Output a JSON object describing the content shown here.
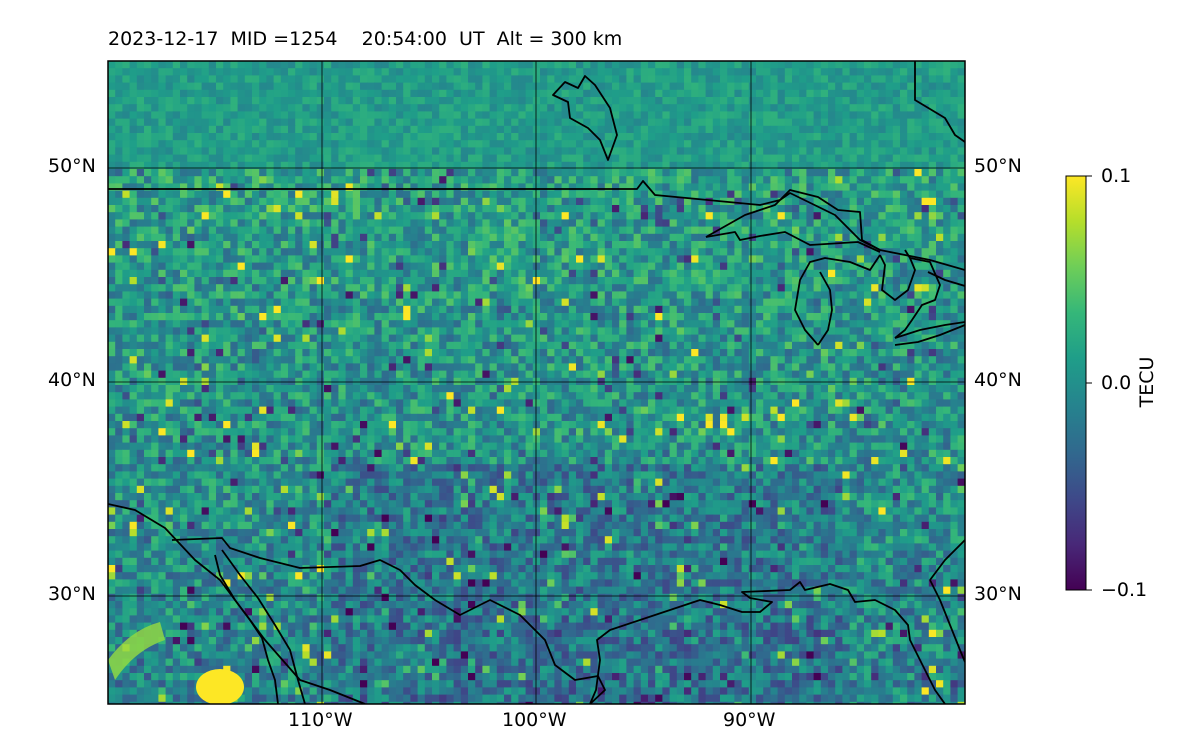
{
  "header": {
    "date": "2023-12-17",
    "mid": "MID =1254",
    "time": "20:54:00  UT",
    "alt": "Alt = 300 km"
  },
  "map": {
    "lat_labels": [
      "50°N",
      "40°N",
      "30°N"
    ],
    "lon_labels": [
      "110°W",
      "100°W",
      "90°W"
    ],
    "lat_range": [
      25,
      55
    ],
    "lon_range": [
      -120,
      -80
    ]
  },
  "colorbar": {
    "label": "TECU",
    "ticks": [
      "0.1",
      "0.0",
      "−0.1"
    ],
    "range": [
      -0.1,
      0.1
    ],
    "colormap": "viridis",
    "stops": [
      "#440154",
      "#482878",
      "#3e4989",
      "#31688e",
      "#26828e",
      "#1f9e89",
      "#35b779",
      "#6ece58",
      "#b5de2b",
      "#fde725"
    ]
  }
}
